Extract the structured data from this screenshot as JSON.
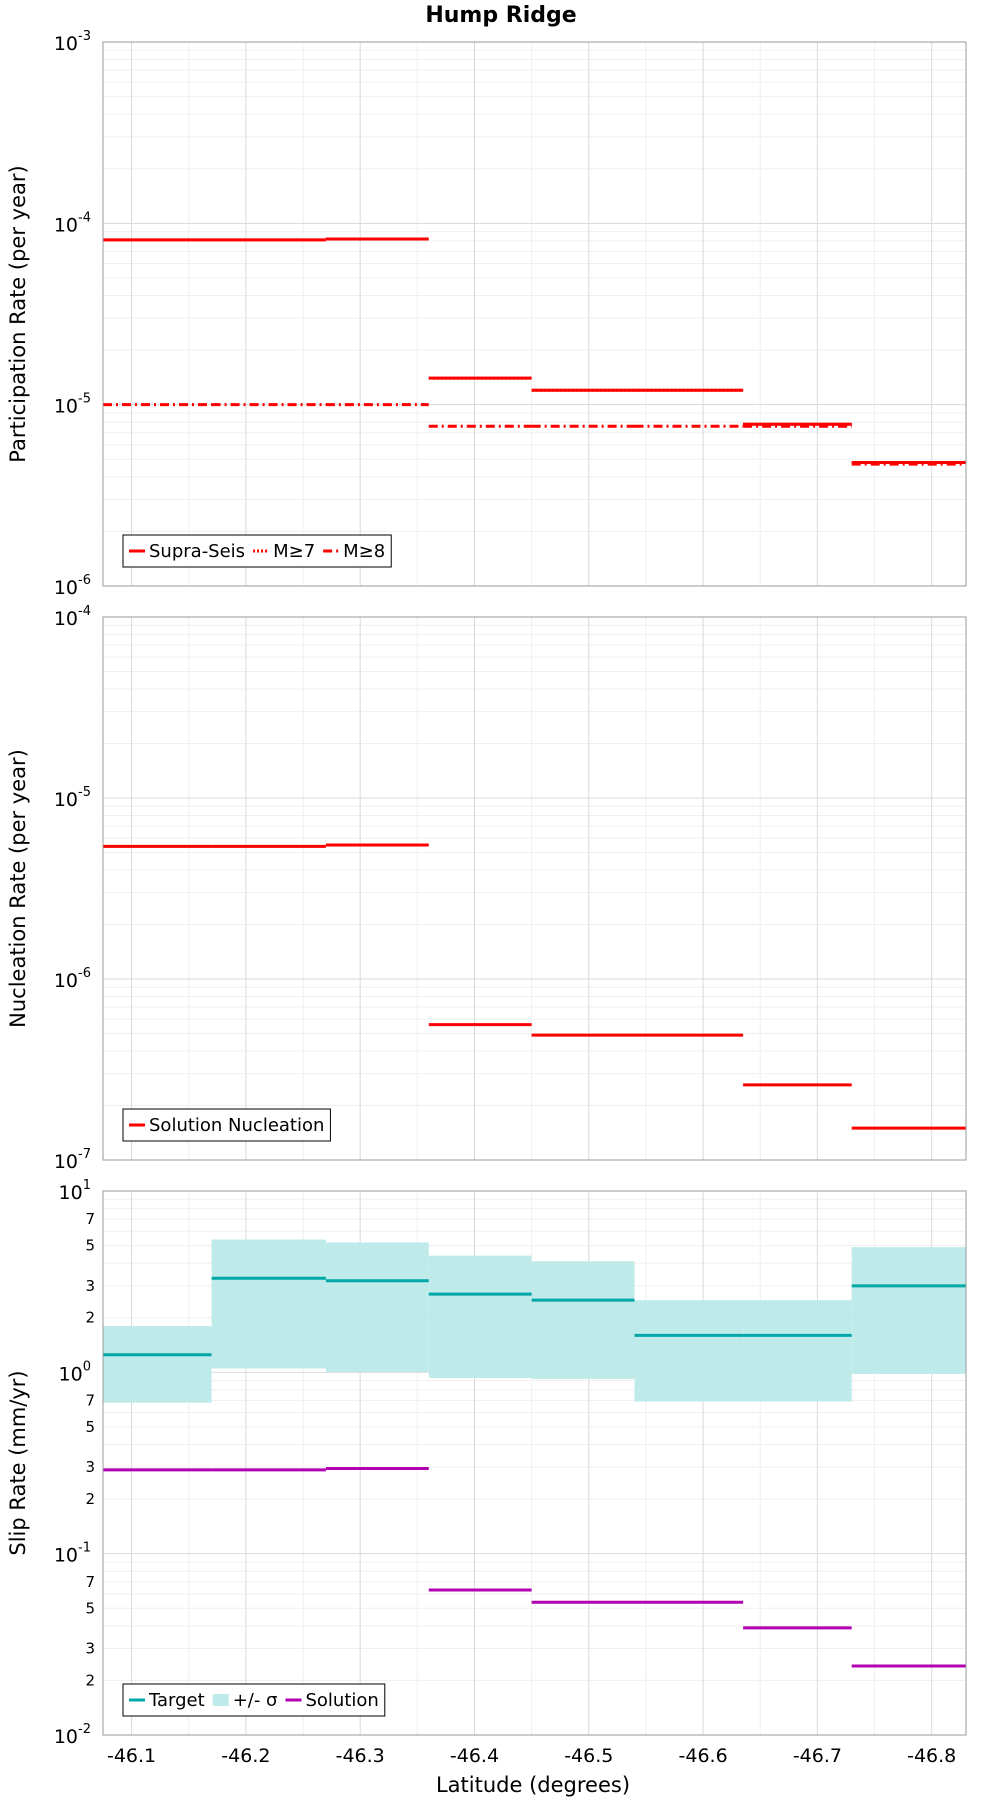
{
  "chart_data": {
    "type": "line",
    "title": "Hump Ridge",
    "xlabel": "Latitude (degrees)",
    "xlim": [
      -46.075,
      -46.83
    ],
    "x_ticks": [
      -46.1,
      -46.2,
      -46.3,
      -46.4,
      -46.5,
      -46.6,
      -46.7,
      -46.8
    ],
    "x_tick_labels": [
      "-46.1",
      "-46.2",
      "-46.3",
      "-46.4",
      "-46.5",
      "-46.6",
      "-46.7",
      "-46.8"
    ],
    "segment_bounds": [
      -46.075,
      -46.17,
      -46.27,
      -46.36,
      -46.45,
      -46.54,
      -46.635,
      -46.73,
      -46.83
    ],
    "panels": [
      {
        "ylabel": "Participation Rate (per year)",
        "yscale": "log",
        "ylim": [
          1e-06,
          0.001
        ],
        "major_ticks": [
          {
            "value": 1e-06,
            "base": "10",
            "exp": "-6"
          },
          {
            "value": 1e-05,
            "base": "10",
            "exp": "-5"
          },
          {
            "value": 0.0001,
            "base": "10",
            "exp": "-4"
          },
          {
            "value": 0.001,
            "base": "10",
            "exp": "-3"
          }
        ],
        "minor_tick_labels": [],
        "legend": [
          {
            "label": "Supra-Seis",
            "color": "#ff0000",
            "style": "solid"
          },
          {
            "label": "M≥7",
            "color": "#ff0000",
            "style": "dotted"
          },
          {
            "label": "M≥8",
            "color": "#ff0000",
            "style": "dashdot"
          }
        ],
        "series": [
          {
            "name": "Supra-Seis",
            "color": "#ff0000",
            "style": "solid",
            "values": [
              8.1e-05,
              8.1e-05,
              8.2e-05,
              1.4e-05,
              1.2e-05,
              1.2e-05,
              7.8e-06,
              4.8e-06
            ]
          },
          {
            "name": "M≥7",
            "color": "#ff0000",
            "style": "dotted",
            "values": [
              8.1e-05,
              8.1e-05,
              8.2e-05,
              1.4e-05,
              1.2e-05,
              1.2e-05,
              7.8e-06,
              4.8e-06
            ]
          },
          {
            "name": "M≥8",
            "color": "#ff0000",
            "style": "dashdot",
            "values": [
              1e-05,
              1e-05,
              1e-05,
              7.6e-06,
              7.6e-06,
              7.6e-06,
              7.6e-06,
              4.7e-06
            ]
          }
        ]
      },
      {
        "ylabel": "Nucleation Rate (per year)",
        "yscale": "log",
        "ylim": [
          1e-07,
          0.0001
        ],
        "major_ticks": [
          {
            "value": 1e-07,
            "base": "10",
            "exp": "-7"
          },
          {
            "value": 1e-06,
            "base": "10",
            "exp": "-6"
          },
          {
            "value": 1e-05,
            "base": "10",
            "exp": "-5"
          },
          {
            "value": 0.0001,
            "base": "10",
            "exp": "-4"
          }
        ],
        "minor_tick_labels": [],
        "legend": [
          {
            "label": "Solution Nucleation",
            "color": "#ff0000",
            "style": "solid"
          }
        ],
        "series": [
          {
            "name": "Solution Nucleation",
            "color": "#ff0000",
            "style": "solid",
            "values": [
              5.4e-06,
              5.4e-06,
              5.5e-06,
              5.6e-07,
              4.9e-07,
              4.9e-07,
              2.6e-07,
              1.5e-07
            ]
          }
        ]
      },
      {
        "ylabel": "Slip Rate (mm/yr)",
        "yscale": "log",
        "ylim": [
          0.01,
          10
        ],
        "major_ticks": [
          {
            "value": 0.01,
            "base": "10",
            "exp": "-2"
          },
          {
            "value": 0.1,
            "base": "10",
            "exp": "-1"
          },
          {
            "value": 1,
            "base": "10",
            "exp": "0"
          },
          {
            "value": 10,
            "base": "10",
            "exp": "1"
          }
        ],
        "minor_tick_labels": [
          "2",
          "3",
          "5",
          "7"
        ],
        "legend": [
          {
            "label": "Target",
            "color": "#00a8a8",
            "style": "solid"
          },
          {
            "label": "+/- σ",
            "color": "#bfeaea",
            "style": "band"
          },
          {
            "label": "Solution",
            "color": "#b000b0",
            "style": "solid"
          }
        ],
        "band": {
          "name": "+/- σ",
          "color": "#bfeaea",
          "lower": [
            0.68,
            1.05,
            1.0,
            0.93,
            0.92,
            0.69,
            0.69,
            0.98
          ],
          "upper": [
            1.8,
            5.4,
            5.2,
            4.4,
            4.1,
            2.5,
            2.5,
            4.9
          ]
        },
        "series": [
          {
            "name": "Target",
            "color": "#00a8a8",
            "style": "solid",
            "values": [
              1.25,
              3.3,
              3.2,
              2.7,
              2.5,
              1.6,
              1.6,
              3.0
            ]
          },
          {
            "name": "Solution",
            "color": "#b000b0",
            "style": "solid",
            "values": [
              0.29,
              0.29,
              0.295,
              0.063,
              0.054,
              0.054,
              0.039,
              0.024
            ]
          }
        ]
      }
    ]
  }
}
